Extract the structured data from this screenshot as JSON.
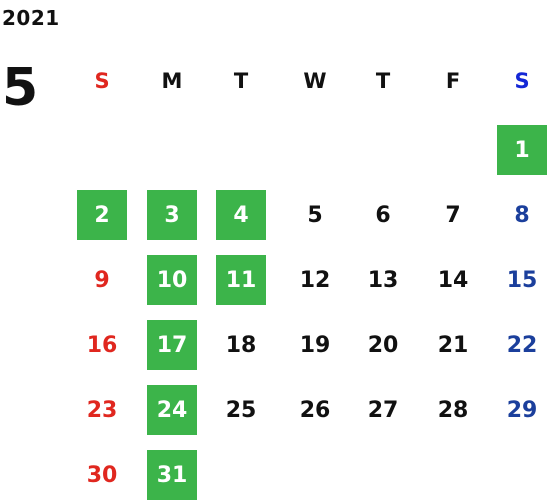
{
  "calendar": {
    "year": "2021",
    "month": "5",
    "weekdays": [
      "S",
      "M",
      "T",
      "W",
      "T",
      "F",
      "S"
    ],
    "weeks": [
      [
        "",
        "",
        "",
        "",
        "",
        "",
        "1"
      ],
      [
        "2",
        "3",
        "4",
        "5",
        "6",
        "7",
        "8"
      ],
      [
        "9",
        "10",
        "11",
        "12",
        "13",
        "14",
        "15"
      ],
      [
        "16",
        "17",
        "18",
        "19",
        "20",
        "21",
        "22"
      ],
      [
        "23",
        "24",
        "25",
        "26",
        "27",
        "28",
        "29"
      ],
      [
        "30",
        "31",
        "",
        "",
        "",
        "",
        ""
      ]
    ],
    "highlighted_days": [
      "1",
      "2",
      "3",
      "4",
      "10",
      "11",
      "17",
      "24",
      "31"
    ]
  },
  "colors": {
    "highlight": "#3cb44a",
    "sunday": "#e0271f",
    "saturday": "#1b3f9c",
    "saturday_header": "#1427d6",
    "text": "#111111"
  }
}
